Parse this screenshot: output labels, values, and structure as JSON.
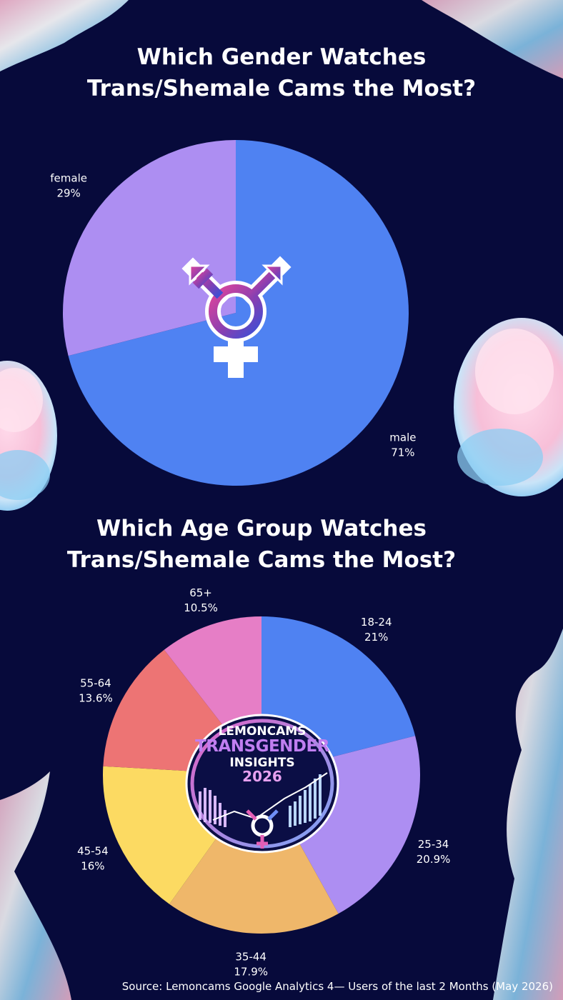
{
  "chart_data": [
    {
      "type": "pie",
      "title_lines": [
        "Which Gender Watches",
        "Trans/Shemale Cams the Most?"
      ],
      "slices": [
        {
          "label": "male",
          "value": 71,
          "display": "71%",
          "color": "#4f82f2"
        },
        {
          "label": "female",
          "value": 29,
          "display": "29%",
          "color": "#ad8ef2"
        }
      ]
    },
    {
      "type": "pie",
      "title_lines": [
        "Which Age Group Watches",
        "Trans/Shemale Cams the Most?"
      ],
      "slices": [
        {
          "label": "18-24",
          "value": 21,
          "display": "21%",
          "color": "#4f82f2"
        },
        {
          "label": "25-34",
          "value": 20.9,
          "display": "20.9%",
          "color": "#ad8ef2"
        },
        {
          "label": "35-44",
          "value": 17.9,
          "display": "17.9%",
          "color": "#efb76a"
        },
        {
          "label": "45-54",
          "value": 16,
          "display": "16%",
          "color": "#fcda62"
        },
        {
          "label": "55-64",
          "value": 13.6,
          "display": "13.6%",
          "color": "#ed7474"
        },
        {
          "label": "65+",
          "value": 10.5,
          "display": "10.5%",
          "color": "#e67ec6"
        }
      ]
    }
  ],
  "badge": {
    "line1": "LEMONCAMS",
    "line2": "TRANSGENDER",
    "line3": "INSIGHTS",
    "line4": "2026"
  },
  "icons": [
    "transgender-symbol-icon"
  ],
  "source": "Source: Lemoncams Google Analytics 4— Users of the last 2 Months (May 2026)"
}
